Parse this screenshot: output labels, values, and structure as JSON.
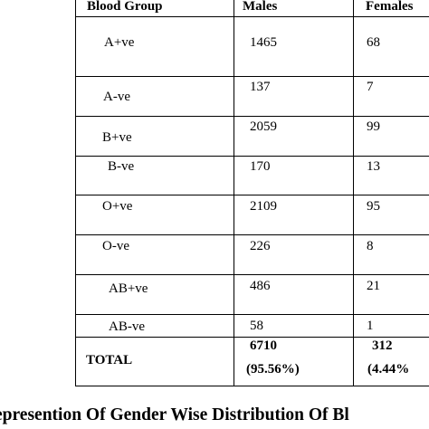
{
  "table": {
    "headers": [
      "Blood Group",
      "Males",
      "Females"
    ],
    "rows": [
      {
        "group": "A+ve",
        "males": "1465",
        "females": "68"
      },
      {
        "group": "A-ve",
        "males": "137",
        "females": "7"
      },
      {
        "group": "B+ve",
        "males": "2059",
        "females": "99"
      },
      {
        "group": "B-ve",
        "males": "170",
        "females": "13"
      },
      {
        "group": "O+ve",
        "males": "2109",
        "females": "95"
      },
      {
        "group": "O-ve",
        "males": "226",
        "females": "8"
      },
      {
        "group": "AB+ve",
        "males": "486",
        "females": "21"
      },
      {
        "group": "AB-ve",
        "males": "58",
        "females": "1"
      }
    ],
    "total": {
      "label": "TOTAL",
      "males": "6710",
      "males_pct": "(95.56%)",
      "females": "312",
      "females_pct": "(4.44%"
    }
  },
  "caption": "epresention Of Gender Wise Distribution Of Bl"
}
